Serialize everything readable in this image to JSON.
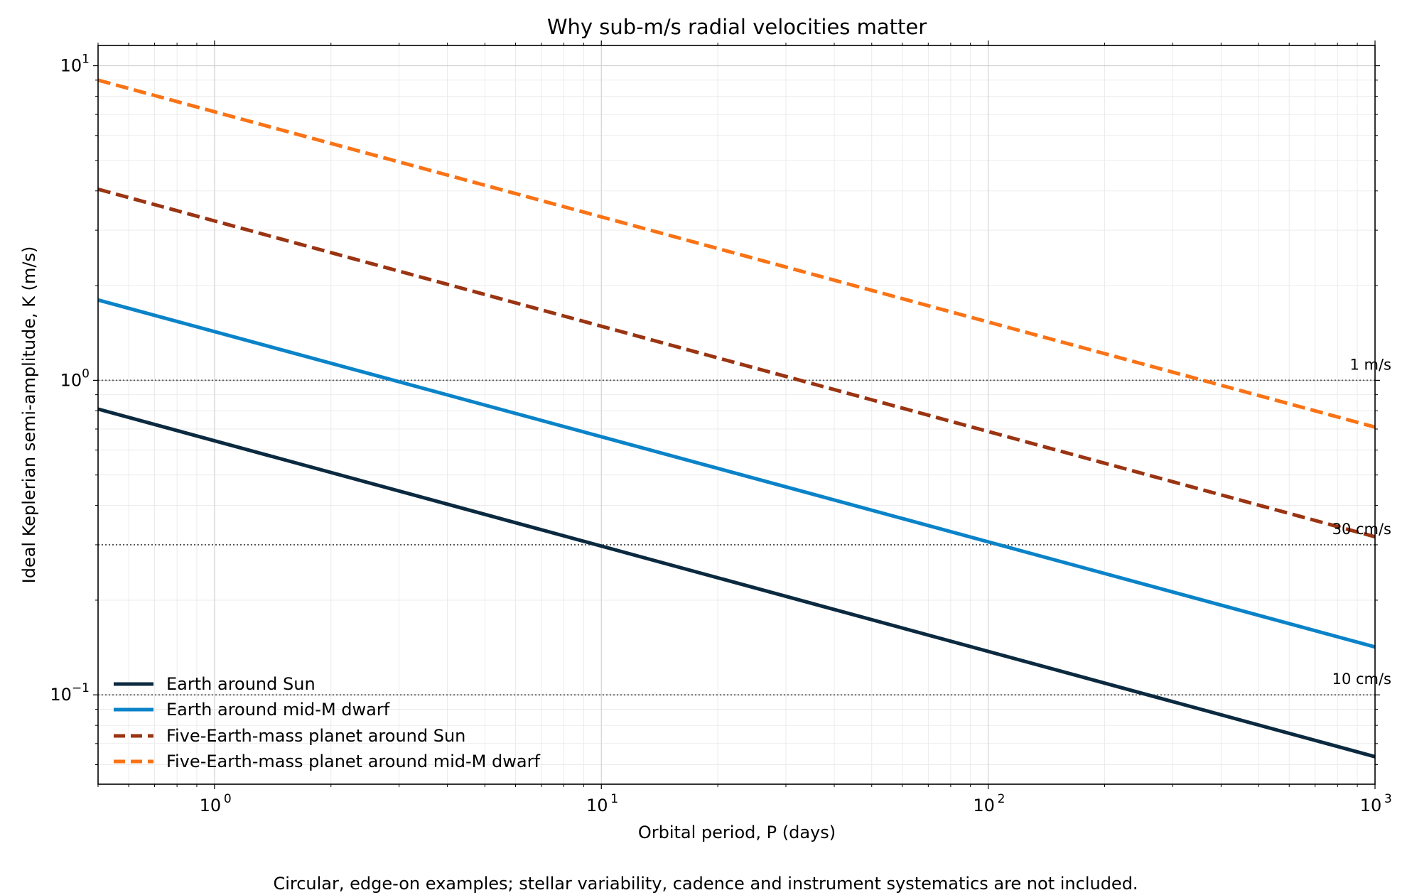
{
  "chart_data": {
    "type": "line",
    "title": "Why sub-m/s radial velocities matter",
    "xlabel": "Orbital period, P (days)",
    "ylabel": "Ideal Keplerian semi-amplitude, K (m/s)",
    "caption": "Circular, edge-on examples; stellar variability, cadence and instrument systematics are not included.",
    "xscale": "log",
    "yscale": "log",
    "xlim": [
      0.5,
      1000
    ],
    "ylim": [
      0.052,
      11.6
    ],
    "grid": true,
    "legend_position": "lower-left",
    "x_ticks": [
      {
        "base": "10",
        "exp": "0",
        "value": 1
      },
      {
        "base": "10",
        "exp": "1",
        "value": 10
      },
      {
        "base": "10",
        "exp": "2",
        "value": 100
      },
      {
        "base": "10",
        "exp": "3",
        "value": 1000
      }
    ],
    "y_ticks": [
      {
        "base": "10",
        "exp": "−1",
        "value": 0.1
      },
      {
        "base": "10",
        "exp": "0",
        "value": 1
      },
      {
        "base": "10",
        "exp": "1",
        "value": 10
      }
    ],
    "reference_lines": [
      {
        "value": 1.0,
        "label": "1 m/s"
      },
      {
        "value": 0.3,
        "label": "30 cm/s"
      },
      {
        "value": 0.1,
        "label": "10 cm/s"
      }
    ],
    "series": [
      {
        "name": "Earth around Sun",
        "color": "#0b2a40",
        "style": "solid",
        "x": [
          0.5,
          1000
        ],
        "y": [
          0.81,
          0.0636
        ]
      },
      {
        "name": "Earth around mid-M dwarf",
        "color": "#0a83c8",
        "style": "solid",
        "x": [
          0.5,
          1000
        ],
        "y": [
          1.8,
          0.142
        ]
      },
      {
        "name": "Five-Earth-mass planet around Sun",
        "color": "#9a3412",
        "style": "dashed",
        "x": [
          0.5,
          1000
        ],
        "y": [
          4.05,
          0.318
        ]
      },
      {
        "name": "Five-Earth-mass planet around mid-M dwarf",
        "color": "#f97316",
        "style": "dashed",
        "x": [
          0.5,
          1000
        ],
        "y": [
          9.0,
          0.71
        ]
      }
    ]
  }
}
